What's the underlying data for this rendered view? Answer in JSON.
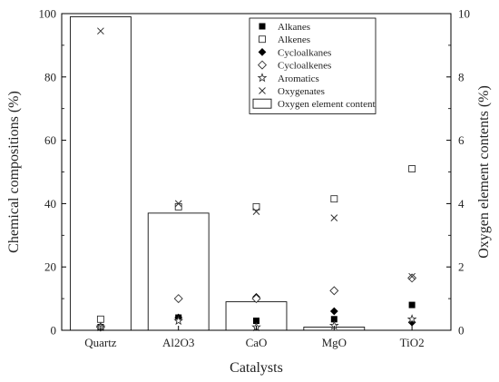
{
  "chart_data": {
    "type": "bar",
    "categories": [
      "Quartz",
      "Al2O3",
      "CaO",
      "MgO",
      "TiO2"
    ],
    "xlabel": "Catalysts",
    "ylabel_left": "Chemical compositions (%)",
    "ylabel_right": "Oxygen element contents (%)",
    "ylim_left": [
      0,
      100
    ],
    "ylim_right": [
      0,
      10
    ],
    "yticks_left": [
      "0",
      "20",
      "40",
      "60",
      "80",
      "100"
    ],
    "yticks_right": [
      "0",
      "2",
      "4",
      "6",
      "8",
      "10"
    ],
    "legend_position": "top-right",
    "grid": false,
    "bar_series": {
      "name": "Oxygen element content",
      "axis": "right",
      "values": [
        9.9,
        3.7,
        0.9,
        0.1,
        0.0
      ]
    },
    "marker_series": [
      {
        "name": "Alkanes",
        "marker": "filled-square",
        "values": [
          1.0,
          4.0,
          3.0,
          3.5,
          8.0
        ]
      },
      {
        "name": "Alkenes",
        "marker": "open-square",
        "values": [
          3.5,
          39.0,
          39.0,
          41.5,
          51.0
        ]
      },
      {
        "name": "Cycloalkanes",
        "marker": "filled-diamond",
        "values": [
          1.0,
          4.0,
          10.5,
          6.0,
          2.5
        ]
      },
      {
        "name": "Cycloalkenes",
        "marker": "open-diamond",
        "values": [
          1.0,
          10.0,
          10.0,
          12.5,
          16.5
        ]
      },
      {
        "name": "Aromatics",
        "marker": "open-star",
        "values": [
          1.0,
          3.0,
          1.0,
          1.5,
          3.5
        ]
      },
      {
        "name": "Oxygenates",
        "marker": "cross",
        "values": [
          94.5,
          40.0,
          37.5,
          35.5,
          17.0
        ]
      }
    ]
  }
}
